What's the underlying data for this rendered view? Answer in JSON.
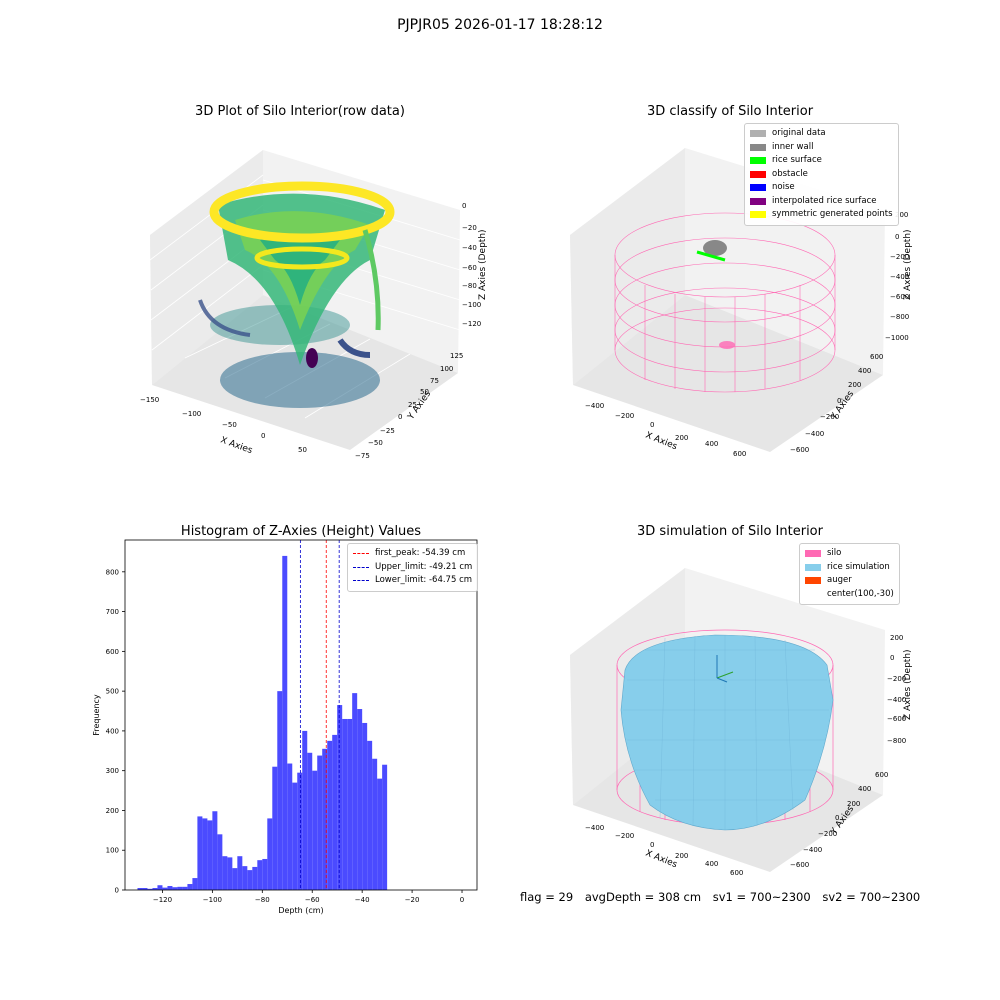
{
  "suptitle": "PJPJR05 2026-01-17 18:28:12",
  "colors": {
    "hist_bar": "#4b4bff",
    "peak_line": "#ff0000",
    "limit_line": "#0000cc",
    "silo": "#ff69b4",
    "rice": "#87ceeb",
    "auger": "#ff4500",
    "wall": "#888888",
    "original": "#b0b0b0"
  },
  "panel1": {
    "title": "3D Plot of Silo Interior(row data)",
    "xlabel": "X Axies",
    "ylabel": "Y Axies",
    "zlabel": "Z Axies (Depth)",
    "xticks": [
      "−150",
      "−100",
      "−50",
      "0",
      "50"
    ],
    "yticks": [
      "−75",
      "−50",
      "−25",
      "0",
      "25",
      "50",
      "75",
      "100",
      "125"
    ],
    "zticks": [
      "0",
      "−20",
      "−40",
      "−60",
      "−80",
      "−100",
      "−120"
    ]
  },
  "panel2": {
    "title": "3D classify of Silo Interior",
    "xlabel": "X Axies",
    "ylabel": "Y Axies",
    "zlabel": "Z Axies (Depth)",
    "xticks": [
      "−400",
      "−200",
      "0",
      "200",
      "400",
      "600"
    ],
    "yticks": [
      "−600",
      "−400",
      "−200",
      "0",
      "200",
      "400",
      "600"
    ],
    "zticks": [
      "200",
      "0",
      "−200",
      "−400",
      "−600",
      "−800",
      "−1000"
    ],
    "legend": [
      {
        "label": "original data",
        "color": "#b0b0b0"
      },
      {
        "label": "inner wall",
        "color": "#888888"
      },
      {
        "label": "rice surface",
        "color": "#00ff00"
      },
      {
        "label": "obstacle",
        "color": "#ff0000"
      },
      {
        "label": "noise",
        "color": "#0000ff"
      },
      {
        "label": "interpolated rice surface",
        "color": "#800080"
      },
      {
        "label": "symmetric generated points",
        "color": "#ffff00"
      }
    ]
  },
  "panel3": {
    "title": "Histogram of Z-Axies (Height) Values",
    "legend": [
      {
        "label": "first_peak: -54.39 cm",
        "color": "#ff0000"
      },
      {
        "label": "Upper_limit: -49.21 cm",
        "color": "#0000cc"
      },
      {
        "label": "Lower_limit: -64.75 cm",
        "color": "#0000cc"
      }
    ]
  },
  "panel4": {
    "title": "3D simulation of Silo Interior",
    "xlabel": "X Axies",
    "ylabel": "Y Axies",
    "zlabel": "Z Axies (Depth)",
    "xticks": [
      "−400",
      "−200",
      "0",
      "200",
      "400",
      "600"
    ],
    "yticks": [
      "−600",
      "−400",
      "−200",
      "0",
      "200",
      "400",
      "600"
    ],
    "zticks": [
      "200",
      "0",
      "−200",
      "−400",
      "−600",
      "−800"
    ],
    "legend": [
      {
        "label": "silo",
        "color": "#ff69b4"
      },
      {
        "label": "rice simulation",
        "color": "#87ceeb"
      },
      {
        "label": "auger",
        "color": "#ff4500"
      },
      {
        "label": "center(100,-30)",
        "color": ""
      }
    ]
  },
  "footer": {
    "flag": "flag = 29",
    "avg": "avgDepth = 308 cm",
    "sv1": "sv1 = 700~2300",
    "sv2": "sv2 = 700~2300"
  },
  "chart_data": {
    "type": "bar",
    "title": "Histogram of Z-Axies (Height) Values",
    "xlabel": "Depth (cm)",
    "ylabel": "Frequency",
    "xlim": [
      -135,
      6
    ],
    "ylim": [
      0,
      880
    ],
    "xticks": [
      -120,
      -100,
      -80,
      -60,
      -40,
      -20,
      0
    ],
    "yticks": [
      0,
      100,
      200,
      300,
      400,
      500,
      600,
      700,
      800
    ],
    "bin_width": 2,
    "bin_starts": [
      -130,
      -128,
      -126,
      -124,
      -122,
      -120,
      -118,
      -116,
      -114,
      -112,
      -110,
      -108,
      -106,
      -104,
      -102,
      -100,
      -98,
      -96,
      -94,
      -92,
      -90,
      -88,
      -86,
      -84,
      -82,
      -80,
      -78,
      -76,
      -74,
      -72,
      -70,
      -68,
      -66,
      -64,
      -62,
      -60,
      -58,
      -56,
      -54,
      -52,
      -50,
      -48,
      -46,
      -44,
      -42,
      -40,
      -38,
      -36,
      -34,
      -32,
      -30,
      -28,
      -26,
      -24,
      -22,
      -20,
      -18,
      -16,
      -14,
      -12,
      -10,
      -8,
      -6,
      -4,
      -2
    ],
    "values": [
      5,
      5,
      3,
      5,
      12,
      6,
      10,
      7,
      8,
      8,
      15,
      30,
      185,
      180,
      175,
      198,
      140,
      85,
      82,
      55,
      85,
      60,
      50,
      58,
      75,
      78,
      180,
      310,
      500,
      840,
      318,
      270,
      295,
      400,
      345,
      300,
      338,
      355,
      375,
      390,
      465,
      430,
      430,
      495,
      455,
      420,
      375,
      330,
      280,
      315,
      0,
      0,
      0,
      0,
      0,
      0,
      0,
      0,
      0,
      0,
      0,
      0,
      0,
      0,
      0
    ],
    "vlines": [
      {
        "name": "first_peak",
        "x": -54.39,
        "color": "#ff0000"
      },
      {
        "name": "Upper_limit",
        "x": -49.21,
        "color": "#0000cc"
      },
      {
        "name": "Lower_limit",
        "x": -64.75,
        "color": "#0000cc"
      }
    ]
  }
}
